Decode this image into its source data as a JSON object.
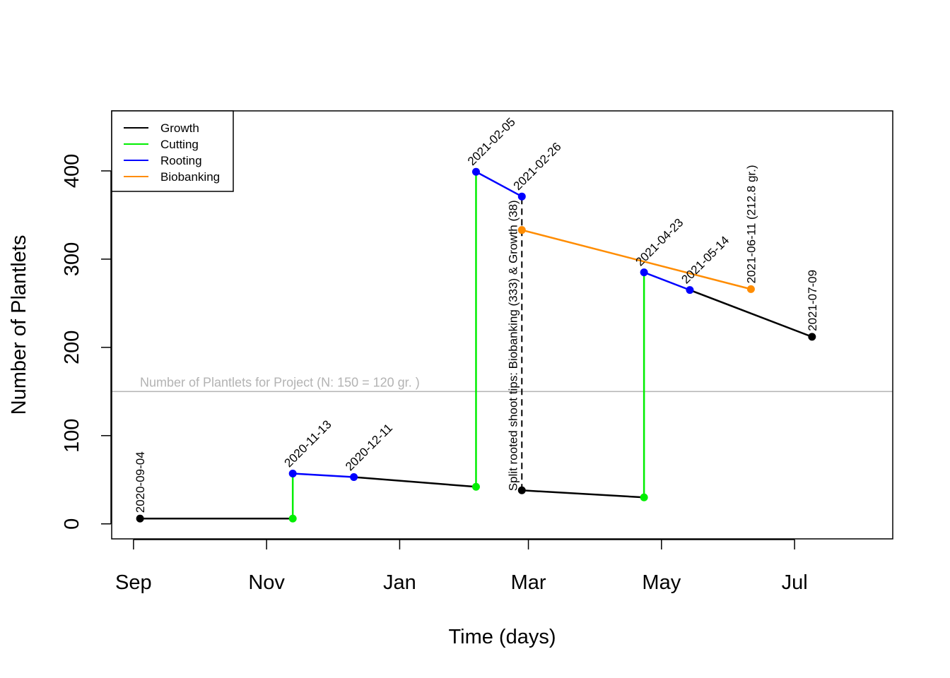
{
  "chart_data": {
    "type": "line",
    "xlabel": "Time (days)",
    "ylabel": "Number of Plantlets",
    "x_ticks": [
      {
        "date": "2020-09-01",
        "label": "Sep"
      },
      {
        "date": "2020-11-01",
        "label": "Nov"
      },
      {
        "date": "2021-01-01",
        "label": "Jan"
      },
      {
        "date": "2021-03-01",
        "label": "Mar"
      },
      {
        "date": "2021-05-01",
        "label": "May"
      },
      {
        "date": "2021-07-01",
        "label": "Jul"
      }
    ],
    "xlim": [
      "2020-08-22",
      "2021-08-15"
    ],
    "y_ticks": [
      0,
      100,
      200,
      300,
      400
    ],
    "ylim": [
      -17,
      468
    ],
    "grid": false,
    "legend": {
      "placement": "top-left",
      "entries": [
        {
          "name": "Growth",
          "color": "#000000"
        },
        {
          "name": "Cutting",
          "color": "#00ee00"
        },
        {
          "name": "Rooting",
          "color": "#0000ff"
        },
        {
          "name": "Biobanking",
          "color": "#ff8c00"
        }
      ]
    },
    "series": [
      {
        "name": "Growth",
        "color": "#000000",
        "kind": "segments",
        "segments": [
          [
            {
              "x": "2020-09-04",
              "y": 6
            },
            {
              "x": "2020-11-13",
              "y": 6
            }
          ],
          [
            {
              "x": "2020-12-11",
              "y": 53
            },
            {
              "x": "2021-02-05",
              "y": 42
            }
          ],
          [
            {
              "x": "2021-02-26",
              "y": 38
            },
            {
              "x": "2021-04-23",
              "y": 30
            }
          ],
          [
            {
              "x": "2021-05-14",
              "y": 265
            },
            {
              "x": "2021-07-09",
              "y": 212
            }
          ]
        ]
      },
      {
        "name": "Cutting",
        "color": "#00ee00",
        "kind": "vertical",
        "segments": [
          [
            {
              "x": "2020-11-13",
              "y": 6
            },
            {
              "x": "2020-11-13",
              "y": 57
            }
          ],
          [
            {
              "x": "2021-02-05",
              "y": 42
            },
            {
              "x": "2021-02-05",
              "y": 399
            }
          ],
          [
            {
              "x": "2021-04-23",
              "y": 30
            },
            {
              "x": "2021-04-23",
              "y": 285
            }
          ]
        ]
      },
      {
        "name": "Rooting",
        "color": "#0000ff",
        "kind": "segments",
        "segments": [
          [
            {
              "x": "2020-11-13",
              "y": 57
            },
            {
              "x": "2020-12-11",
              "y": 53
            }
          ],
          [
            {
              "x": "2021-02-05",
              "y": 399
            },
            {
              "x": "2021-02-26",
              "y": 371
            }
          ],
          [
            {
              "x": "2021-04-23",
              "y": 285
            },
            {
              "x": "2021-05-14",
              "y": 265
            }
          ]
        ]
      },
      {
        "name": "Biobanking",
        "color": "#ff8c00",
        "kind": "segments",
        "segments": [
          [
            {
              "x": "2021-02-26",
              "y": 333
            },
            {
              "x": "2021-06-11",
              "y": 266
            }
          ]
        ]
      }
    ],
    "points": [
      {
        "x": "2020-09-04",
        "y": 6,
        "color": "#000000"
      },
      {
        "x": "2020-11-13",
        "y": 6,
        "color": "#00ee00"
      },
      {
        "x": "2020-11-13",
        "y": 57,
        "color": "#0000ff"
      },
      {
        "x": "2020-12-11",
        "y": 53,
        "color": "#0000ff"
      },
      {
        "x": "2021-02-05",
        "y": 42,
        "color": "#00ee00"
      },
      {
        "x": "2021-02-05",
        "y": 399,
        "color": "#0000ff"
      },
      {
        "x": "2021-02-26",
        "y": 371,
        "color": "#0000ff"
      },
      {
        "x": "2021-02-26",
        "y": 333,
        "color": "#ff8c00"
      },
      {
        "x": "2021-02-26",
        "y": 38,
        "color": "#000000"
      },
      {
        "x": "2021-04-23",
        "y": 30,
        "color": "#00ee00"
      },
      {
        "x": "2021-04-23",
        "y": 285,
        "color": "#0000ff"
      },
      {
        "x": "2021-05-14",
        "y": 265,
        "color": "#0000ff"
      },
      {
        "x": "2021-06-11",
        "y": 266,
        "color": "#ff8c00"
      },
      {
        "x": "2021-07-09",
        "y": 212,
        "color": "#000000"
      }
    ],
    "date_labels": [
      {
        "text": "2020-09-04",
        "x": "2020-09-04",
        "y": 6,
        "angle": 90
      },
      {
        "text": "2020-11-13",
        "x": "2020-11-13",
        "y": 57,
        "angle": 45
      },
      {
        "text": "2020-12-11",
        "x": "2020-12-11",
        "y": 53,
        "angle": 45
      },
      {
        "text": "2021-02-05",
        "x": "2021-02-05",
        "y": 399,
        "angle": 45
      },
      {
        "text": "2021-02-26",
        "x": "2021-02-26",
        "y": 371,
        "angle": 45
      },
      {
        "text": "2021-04-23",
        "x": "2021-04-23",
        "y": 285,
        "angle": 45
      },
      {
        "text": "2021-05-14",
        "x": "2021-05-14",
        "y": 265,
        "angle": 45
      },
      {
        "text": "2021-06-11 (212.8 gr.)",
        "x": "2021-06-11",
        "y": 266,
        "angle": 90
      },
      {
        "text": "2021-07-09",
        "x": "2021-07-09",
        "y": 212,
        "angle": 90
      }
    ],
    "reference_line": {
      "y": 150,
      "color": "#b3b3b3",
      "label": "Number of Plantlets for Project (N: 150 = 120 gr. )"
    },
    "split_annotation": {
      "x": "2021-02-26",
      "y_from": 38,
      "y_to": 371,
      "text": "Split rooted shoot tips: Biobanking (333) & Growth (38)"
    }
  }
}
